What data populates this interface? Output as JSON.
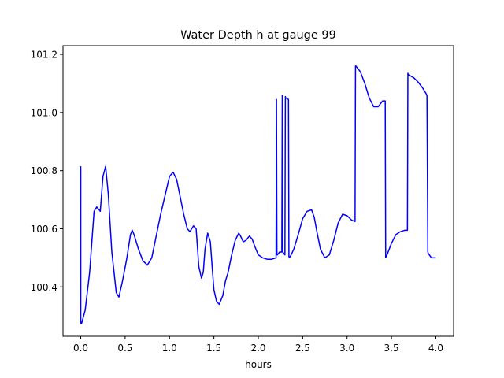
{
  "chart_data": {
    "type": "line",
    "title": "Water Depth h at gauge 99",
    "xlabel": "hours",
    "ylabel": "",
    "xlim": [
      -0.2,
      4.2
    ],
    "ylim": [
      100.23,
      101.23
    ],
    "xticks": [
      0.0,
      0.5,
      1.0,
      1.5,
      2.0,
      2.5,
      3.0,
      3.5,
      4.0
    ],
    "xtick_labels": [
      "0.0",
      "0.5",
      "1.0",
      "1.5",
      "2.0",
      "2.5",
      "3.0",
      "3.5",
      "4.0"
    ],
    "yticks": [
      100.4,
      100.6,
      100.8,
      101.0,
      101.2
    ],
    "ytick_labels": [
      "100.4",
      "100.6",
      "100.8",
      "101.0",
      "101.2"
    ],
    "grid": false,
    "series": [
      {
        "color": "#0000ff",
        "x": [
          0.0,
          0.0,
          0.01,
          0.05,
          0.1,
          0.15,
          0.18,
          0.22,
          0.25,
          0.28,
          0.31,
          0.35,
          0.4,
          0.43,
          0.47,
          0.52,
          0.56,
          0.58,
          0.6,
          0.65,
          0.7,
          0.75,
          0.8,
          0.9,
          1.0,
          1.04,
          1.08,
          1.12,
          1.16,
          1.2,
          1.23,
          1.27,
          1.3,
          1.33,
          1.36,
          1.38,
          1.4,
          1.43,
          1.46,
          1.48,
          1.5,
          1.53,
          1.56,
          1.6,
          1.63,
          1.66,
          1.7,
          1.74,
          1.78,
          1.8,
          1.83,
          1.86,
          1.9,
          1.93,
          1.96,
          2.0,
          2.05,
          2.1,
          2.15,
          2.2,
          2.205,
          2.21,
          2.215,
          2.24,
          2.265,
          2.27,
          2.275,
          2.3,
          2.305,
          2.31,
          2.34,
          2.345,
          2.35,
          2.37,
          2.4,
          2.45,
          2.5,
          2.55,
          2.6,
          2.63,
          2.66,
          2.7,
          2.75,
          2.8,
          2.85,
          2.9,
          2.95,
          3.0,
          3.05,
          3.09,
          3.095,
          3.1,
          3.15,
          3.2,
          3.25,
          3.3,
          3.35,
          3.4,
          3.43,
          3.435,
          3.44,
          3.45,
          3.5,
          3.55,
          3.6,
          3.65,
          3.68,
          3.685,
          3.69,
          3.75,
          3.8,
          3.85,
          3.9,
          3.91,
          3.915,
          3.95,
          4.0
        ],
        "y": [
          100.815,
          100.275,
          100.275,
          100.32,
          100.45,
          100.66,
          100.675,
          100.66,
          100.78,
          100.815,
          100.72,
          100.52,
          100.38,
          100.365,
          100.42,
          100.5,
          100.58,
          100.595,
          100.58,
          100.53,
          100.49,
          100.475,
          100.5,
          100.65,
          100.78,
          100.795,
          100.77,
          100.71,
          100.65,
          100.6,
          100.59,
          100.61,
          100.6,
          100.47,
          100.43,
          100.45,
          100.53,
          100.585,
          100.555,
          100.47,
          100.39,
          100.35,
          100.34,
          100.37,
          100.42,
          100.45,
          100.51,
          100.56,
          100.585,
          100.575,
          100.555,
          100.56,
          100.575,
          100.565,
          100.54,
          100.51,
          100.5,
          100.495,
          100.495,
          100.5,
          101.045,
          100.51,
          100.51,
          100.52,
          100.52,
          101.06,
          100.52,
          100.51,
          101.055,
          101.05,
          101.045,
          100.505,
          100.5,
          100.51,
          100.53,
          100.58,
          100.635,
          100.66,
          100.665,
          100.64,
          100.59,
          100.53,
          100.5,
          100.51,
          100.56,
          100.62,
          100.65,
          100.645,
          100.63,
          100.625,
          101.16,
          101.16,
          101.14,
          101.1,
          101.05,
          101.02,
          101.02,
          101.04,
          101.04,
          100.5,
          100.505,
          100.51,
          100.55,
          100.58,
          100.59,
          100.595,
          100.595,
          101.135,
          101.13,
          101.12,
          101.105,
          101.085,
          101.06,
          100.52,
          100.515,
          100.5,
          100.5
        ]
      }
    ]
  }
}
